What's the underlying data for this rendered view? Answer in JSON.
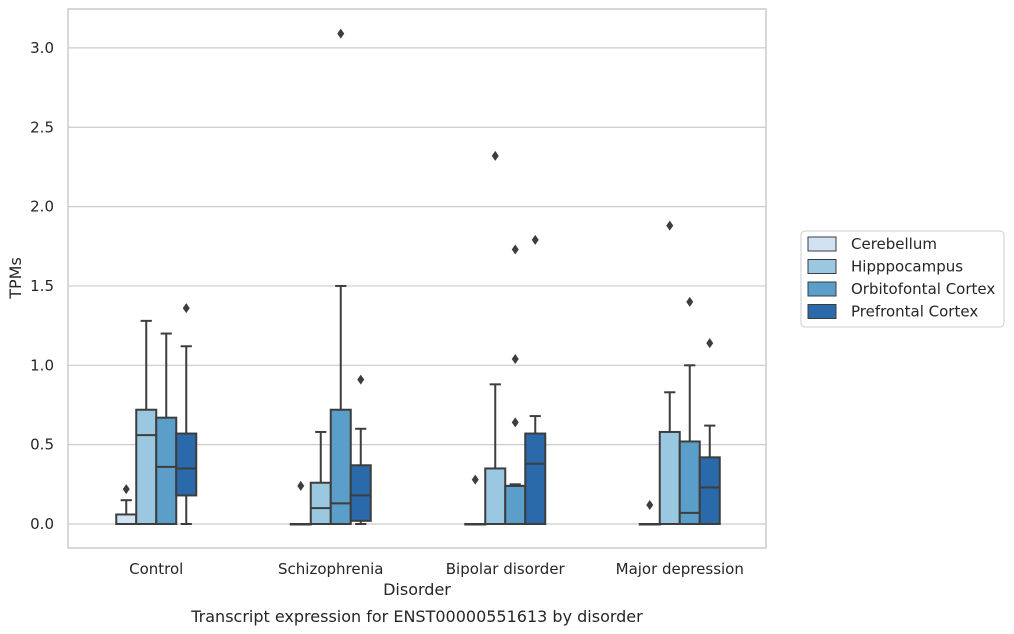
{
  "chart_data": {
    "type": "box",
    "xlabel": "Disorder",
    "ylabel": "TPMs",
    "caption": "Transcript expression for ENST00000551613 by disorder",
    "categories": [
      "Control",
      "Schizophrenia",
      "Bipolar disorder",
      "Major depression"
    ],
    "ylim": [
      -0.15,
      3.25
    ],
    "yticks": [
      0.0,
      0.5,
      1.0,
      1.5,
      2.0,
      2.5,
      3.0
    ],
    "ytick_labels": [
      "0.0",
      "0.5",
      "1.0",
      "1.5",
      "2.0",
      "2.5",
      "3.0"
    ],
    "grid": "horizontal",
    "legend_position": "right",
    "series": [
      {
        "name": "Cerebellum",
        "color": "#d1e2f2",
        "boxes": [
          {
            "whisker_low": 0.0,
            "q1": 0.0,
            "median": 0.0,
            "q3": 0.06,
            "whisker_high": 0.15,
            "outliers": [
              0.22
            ]
          },
          {
            "whisker_low": 0.0,
            "q1": 0.0,
            "median": 0.0,
            "q3": 0.0,
            "whisker_high": 0.0,
            "outliers": [
              0.24
            ]
          },
          {
            "whisker_low": 0.0,
            "q1": 0.0,
            "median": 0.0,
            "q3": 0.0,
            "whisker_high": 0.0,
            "outliers": [
              0.28
            ]
          },
          {
            "whisker_low": 0.0,
            "q1": 0.0,
            "median": 0.0,
            "q3": 0.0,
            "whisker_high": 0.0,
            "outliers": [
              0.12
            ]
          }
        ]
      },
      {
        "name": "Hipppocampus",
        "color": "#9ac8e0",
        "boxes": [
          {
            "whisker_low": 0.0,
            "q1": 0.0,
            "median": 0.56,
            "q3": 0.72,
            "whisker_high": 1.28,
            "outliers": []
          },
          {
            "whisker_low": 0.0,
            "q1": 0.0,
            "median": 0.1,
            "q3": 0.26,
            "whisker_high": 0.58,
            "outliers": []
          },
          {
            "whisker_low": 0.0,
            "q1": 0.0,
            "median": 0.0,
            "q3": 0.35,
            "whisker_high": 0.88,
            "outliers": [
              2.32
            ]
          },
          {
            "whisker_low": 0.0,
            "q1": 0.0,
            "median": 0.0,
            "q3": 0.58,
            "whisker_high": 0.83,
            "outliers": [
              1.88
            ]
          }
        ]
      },
      {
        "name": "Orbitofontal Cortex",
        "color": "#5a9ec9",
        "boxes": [
          {
            "whisker_low": 0.0,
            "q1": 0.0,
            "median": 0.36,
            "q3": 0.67,
            "whisker_high": 1.2,
            "outliers": []
          },
          {
            "whisker_low": 0.0,
            "q1": 0.0,
            "median": 0.13,
            "q3": 0.72,
            "whisker_high": 1.5,
            "outliers": [
              3.09
            ]
          },
          {
            "whisker_low": 0.0,
            "q1": 0.0,
            "median": 0.24,
            "q3": 0.24,
            "whisker_high": 0.25,
            "outliers": [
              0.64,
              1.04,
              1.73
            ]
          },
          {
            "whisker_low": 0.0,
            "q1": 0.0,
            "median": 0.07,
            "q3": 0.52,
            "whisker_high": 1.0,
            "outliers": [
              1.4
            ]
          }
        ]
      },
      {
        "name": "Prefrontal Cortex",
        "color": "#2b6aaa",
        "boxes": [
          {
            "whisker_low": 0.0,
            "q1": 0.18,
            "median": 0.35,
            "q3": 0.57,
            "whisker_high": 1.12,
            "outliers": [
              1.36
            ]
          },
          {
            "whisker_low": 0.0,
            "q1": 0.02,
            "median": 0.18,
            "q3": 0.37,
            "whisker_high": 0.6,
            "outliers": [
              0.91
            ]
          },
          {
            "whisker_low": 0.0,
            "q1": 0.0,
            "median": 0.38,
            "q3": 0.57,
            "whisker_high": 0.68,
            "outliers": [
              1.79
            ]
          },
          {
            "whisker_low": 0.0,
            "q1": 0.0,
            "median": 0.23,
            "q3": 0.42,
            "whisker_high": 0.62,
            "outliers": [
              1.14
            ]
          }
        ]
      }
    ]
  }
}
